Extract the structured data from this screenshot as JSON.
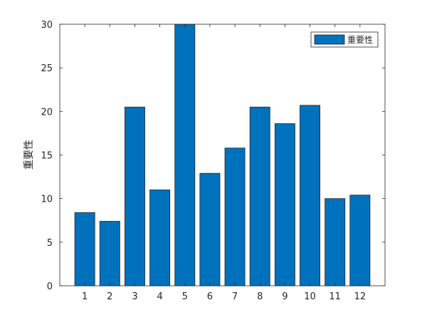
{
  "chart_data": {
    "type": "bar",
    "categories": [
      "1",
      "2",
      "3",
      "4",
      "5",
      "6",
      "7",
      "8",
      "9",
      "10",
      "11",
      "12"
    ],
    "series": [
      {
        "name": "重要性",
        "values": [
          8.4,
          7.4,
          20.5,
          11.0,
          30.0,
          12.9,
          15.8,
          20.5,
          18.6,
          20.7,
          10.0,
          10.4
        ],
        "color": "#0072BD"
      }
    ],
    "xlabel": "",
    "ylabel": "重要性",
    "ylim": [
      0,
      30
    ],
    "yticks": [
      "0",
      "5",
      "10",
      "15",
      "20",
      "25",
      "30"
    ],
    "grid": false,
    "legend_position": "top-right"
  }
}
